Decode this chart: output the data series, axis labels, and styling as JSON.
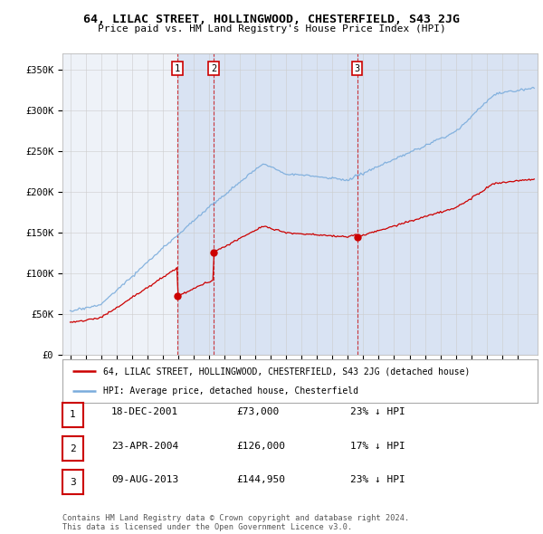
{
  "title": "64, LILAC STREET, HOLLINGWOOD, CHESTERFIELD, S43 2JG",
  "subtitle": "Price paid vs. HM Land Registry's House Price Index (HPI)",
  "legend_line1": "64, LILAC STREET, HOLLINGWOOD, CHESTERFIELD, S43 2JG (detached house)",
  "legend_line2": "HPI: Average price, detached house, Chesterfield",
  "footer1": "Contains HM Land Registry data © Crown copyright and database right 2024.",
  "footer2": "This data is licensed under the Open Government Licence v3.0.",
  "transactions": [
    {
      "num": 1,
      "date": "18-DEC-2001",
      "price": 73000,
      "year": 2001.96,
      "hpi_pct": "23% ↓ HPI"
    },
    {
      "num": 2,
      "date": "23-APR-2004",
      "price": 126000,
      "year": 2004.31,
      "hpi_pct": "17% ↓ HPI"
    },
    {
      "num": 3,
      "date": "09-AUG-2013",
      "price": 144950,
      "year": 2013.6,
      "hpi_pct": "23% ↓ HPI"
    }
  ],
  "hpi_color": "#7aacdc",
  "price_color": "#cc0000",
  "shade_color": "#c8d8f0",
  "plot_bg_color": "#eef2f8",
  "ylim": [
    0,
    370000
  ],
  "yticks": [
    0,
    50000,
    100000,
    150000,
    200000,
    250000,
    300000,
    350000
  ],
  "ytick_labels": [
    "£0",
    "£50K",
    "£100K",
    "£150K",
    "£200K",
    "£250K",
    "£300K",
    "£350K"
  ],
  "xlim_start": 1994.5,
  "xlim_end": 2025.3
}
